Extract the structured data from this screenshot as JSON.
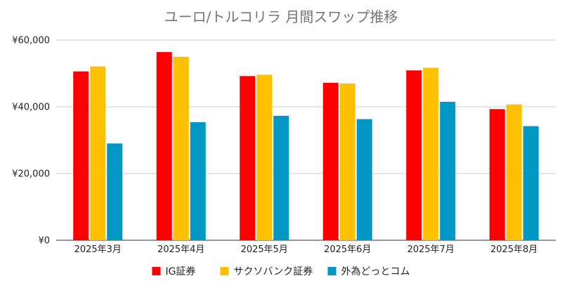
{
  "chart_data": {
    "type": "bar",
    "title": "ユーロ/トルコリラ 月間スワップ推移",
    "xlabel": "",
    "ylabel": "",
    "categories": [
      "2025年3月",
      "2025年4月",
      "2025年5月",
      "2025年6月",
      "2025年7月",
      "2025年8月"
    ],
    "series": [
      {
        "name": "IG証券",
        "color": "#ff0000",
        "values": [
          50600,
          56400,
          49200,
          47200,
          50900,
          39300
        ]
      },
      {
        "name": "サクソバンク証券",
        "color": "#ffc000",
        "values": [
          52100,
          55000,
          49600,
          47000,
          51700,
          40700
        ]
      },
      {
        "name": "外為どっとコム",
        "color": "#0097c5",
        "values": [
          29000,
          35400,
          37300,
          36300,
          41500,
          34200
        ]
      }
    ],
    "ylim": [
      0,
      60000
    ],
    "yticks": [
      0,
      20000,
      40000,
      60000
    ],
    "ytick_labels": [
      "¥0",
      "¥20,000",
      "¥40,000",
      "¥60,000"
    ],
    "grid": true,
    "legend_position": "bottom"
  }
}
